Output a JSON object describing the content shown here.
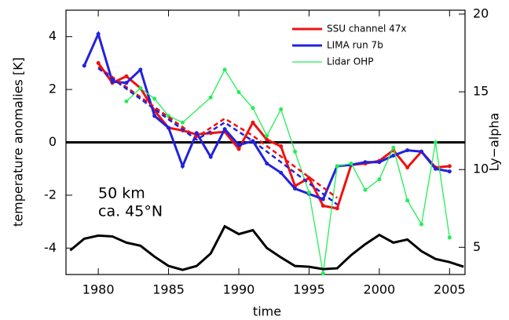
{
  "chart_data": {
    "type": "line",
    "xlabel": "time",
    "ylabel": "temperature anomalies [K]",
    "y2label": "Ly−alpha",
    "annotations": [
      "50 km",
      "ca. 45°N"
    ],
    "xlim": [
      1977.7,
      2006.1
    ],
    "xticks": [
      1980,
      1985,
      1990,
      1995,
      2000,
      2005
    ],
    "ylim": [
      -5,
      5
    ],
    "yticks": [
      -4,
      -2,
      0,
      2,
      4
    ],
    "y2lim": [
      3.25,
      20.25
    ],
    "y2ticks": [
      5,
      10,
      15,
      20
    ],
    "zero_line": true,
    "legend": "upper right",
    "series": [
      {
        "name": "SSU channel 47x",
        "color": "#ee1111",
        "x": [
          1980,
          1981,
          1982,
          1983,
          1984,
          1985,
          1986,
          1987,
          1988,
          1989,
          1990,
          1991,
          1992,
          1993,
          1994,
          1995,
          1996,
          1997,
          1998,
          1999,
          2000,
          2001,
          2002,
          2003,
          2004,
          2005
        ],
        "values": [
          3.0,
          2.25,
          2.5,
          2.05,
          1.2,
          0.55,
          0.45,
          0.3,
          0.35,
          0.4,
          -0.25,
          0.75,
          0.1,
          -0.15,
          -1.65,
          -1.35,
          -2.4,
          -2.5,
          -0.85,
          -0.8,
          -0.7,
          -0.3,
          -0.95,
          -0.35,
          -0.95,
          -0.9
        ]
      },
      {
        "name": "LIMA run 7b",
        "color": "#2222dd",
        "x": [
          1979,
          1980,
          1981,
          1982,
          1983,
          1984,
          1985,
          1986,
          1987,
          1988,
          1989,
          1990,
          1991,
          1992,
          1993,
          1994,
          1995,
          1996,
          1997,
          1998,
          1999,
          2000,
          2001,
          2002,
          2003,
          2004,
          2005
        ],
        "values": [
          2.9,
          4.1,
          2.3,
          2.25,
          2.75,
          1.0,
          0.55,
          -0.9,
          0.35,
          -0.55,
          0.5,
          -0.1,
          0.05,
          -0.8,
          -1.15,
          -1.75,
          -1.95,
          -2.15,
          -0.9,
          -0.85,
          -0.75,
          -0.75,
          -0.5,
          -0.3,
          -0.35,
          -1.0,
          -1.1
        ]
      },
      {
        "name": "Lidar OHP",
        "color": "#22ee55",
        "x": [
          1982,
          1983,
          1984,
          1985,
          1986,
          1988,
          1989,
          1990,
          1991,
          1992,
          1993,
          1994,
          1995,
          1996,
          1997,
          1998,
          1999,
          2000,
          2001,
          2002,
          2003,
          2004,
          2005
        ],
        "values": [
          1.55,
          2.05,
          1.65,
          1.0,
          0.75,
          1.7,
          2.75,
          1.9,
          1.3,
          0.25,
          1.25,
          -0.35,
          -1.9,
          -4.95,
          -0.9,
          -0.8,
          -1.8,
          -1.4,
          -0.2,
          -2.2,
          -3.1,
          0.0,
          -3.6
        ]
      },
      {
        "color": "#ee1111",
        "dash": true,
        "x": [
          1980,
          1987,
          1989,
          1991,
          1997
        ],
        "values": [
          2.85,
          0.2,
          0.9,
          0.25,
          -2.1
        ]
      },
      {
        "color": "#2222dd",
        "dash": true,
        "x": [
          1980,
          1987,
          1989,
          1991,
          1997
        ],
        "values": [
          2.8,
          0.1,
          0.75,
          0.05,
          -2.35
        ]
      },
      {
        "color": "#000000",
        "axis": "y2",
        "x": [
          1978,
          1979,
          1980,
          1981,
          1982,
          1983,
          1984,
          1985,
          1986,
          1987,
          1988,
          1989,
          1990,
          1991,
          1992,
          1993,
          1994,
          1995,
          1996,
          1997,
          1998,
          1999,
          2000,
          2001,
          2002,
          2003,
          2004,
          2005,
          2006
        ],
        "values": [
          4.8,
          5.55,
          5.75,
          5.7,
          5.3,
          5.1,
          4.4,
          3.8,
          3.55,
          3.8,
          4.6,
          6.35,
          5.85,
          6.1,
          4.95,
          4.35,
          3.8,
          3.75,
          3.6,
          3.65,
          4.5,
          5.2,
          5.8,
          5.3,
          5.5,
          4.75,
          4.25,
          4.05,
          3.75
        ]
      }
    ]
  }
}
